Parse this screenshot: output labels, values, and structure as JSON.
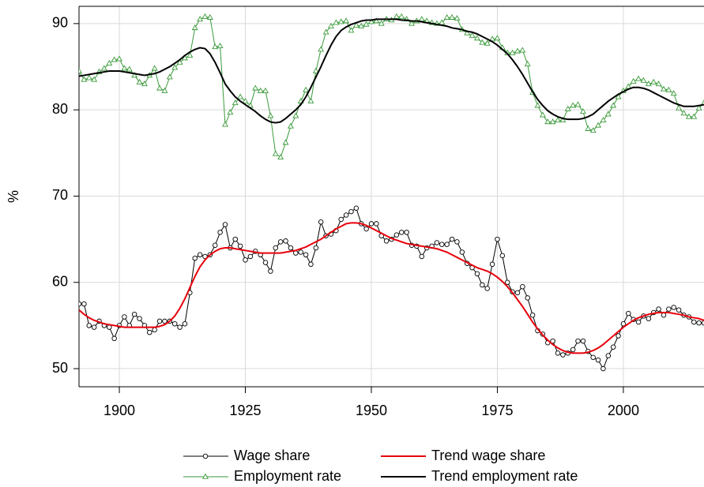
{
  "chart_data": {
    "type": "line",
    "y_label": "%",
    "x": [
      1892,
      1893,
      1894,
      1895,
      1896,
      1897,
      1898,
      1899,
      1900,
      1901,
      1902,
      1903,
      1904,
      1905,
      1906,
      1907,
      1908,
      1909,
      1910,
      1911,
      1912,
      1913,
      1914,
      1915,
      1916,
      1917,
      1918,
      1919,
      1920,
      1921,
      1922,
      1923,
      1924,
      1925,
      1926,
      1927,
      1928,
      1929,
      1930,
      1931,
      1932,
      1933,
      1934,
      1935,
      1936,
      1937,
      1938,
      1939,
      1940,
      1941,
      1942,
      1943,
      1944,
      1945,
      1946,
      1947,
      1948,
      1949,
      1950,
      1951,
      1952,
      1953,
      1954,
      1955,
      1956,
      1957,
      1958,
      1959,
      1960,
      1961,
      1962,
      1963,
      1964,
      1965,
      1966,
      1967,
      1968,
      1969,
      1970,
      1971,
      1972,
      1973,
      1974,
      1975,
      1976,
      1977,
      1978,
      1979,
      1980,
      1981,
      1982,
      1983,
      1984,
      1985,
      1986,
      1987,
      1988,
      1989,
      1990,
      1991,
      1992,
      1993,
      1994,
      1995,
      1996,
      1997,
      1998,
      1999,
      2000,
      2001,
      2002,
      2003,
      2004,
      2005,
      2006,
      2007,
      2008,
      2009,
      2010,
      2011,
      2012,
      2013,
      2014,
      2015,
      2016
    ],
    "xlim": [
      1892,
      2016
    ],
    "xticks": [
      1900,
      1925,
      1950,
      1975,
      2000
    ],
    "ylim": [
      47.9,
      92
    ],
    "yticks": [
      50,
      60,
      70,
      80,
      90
    ],
    "grid": true,
    "series": [
      {
        "name": "Wage share",
        "color": "#000000",
        "marker": "circle",
        "values": [
          57.5,
          57.5,
          55,
          54.8,
          55.5,
          55,
          54.8,
          53.5,
          55,
          56,
          55,
          56.3,
          55.8,
          55,
          54.2,
          54.5,
          55.5,
          55.5,
          55.5,
          55.2,
          54.8,
          55.2,
          58.8,
          62.8,
          63.2,
          63,
          63.2,
          64.3,
          65.8,
          66.7,
          64,
          65,
          64.2,
          62.6,
          63,
          63.6,
          63.2,
          62.3,
          61.3,
          64,
          64.7,
          64.8,
          64,
          63.4,
          63.5,
          63.2,
          62.1,
          64,
          67,
          65.4,
          65.6,
          66,
          67.3,
          67.8,
          68.2,
          68.6,
          66.8,
          66.2,
          66.8,
          66.8,
          65.4,
          64.8,
          65,
          65.5,
          65.8,
          65.8,
          64.3,
          64.2,
          63,
          64,
          64.2,
          64.6,
          64.4,
          64.4,
          65,
          64.7,
          63.5,
          62.2,
          61.7,
          61,
          59.7,
          59.3,
          62.1,
          65,
          63.1,
          60,
          58.9,
          58.8,
          59.5,
          58.2,
          56.2,
          54.4,
          54,
          53,
          53.2,
          51.8,
          51.6,
          51.8,
          52.2,
          53.2,
          53.2,
          52,
          51.3,
          51,
          50,
          51.5,
          52.5,
          53.8,
          55.2,
          56.4,
          55.7,
          55.4,
          56.1,
          55.8,
          56.5,
          56.9,
          56.2,
          56.9,
          57.1,
          56.8,
          56.2,
          56,
          55.4,
          55.3,
          55.3
        ]
      },
      {
        "name": "Trend wage share",
        "color": "#e8000b",
        "marker": null,
        "values": [
          56.8,
          56.3,
          55.9,
          55.6,
          55.4,
          55.2,
          55.1,
          55.0,
          54.9,
          54.8,
          54.8,
          54.8,
          54.8,
          54.8,
          54.8,
          54.8,
          54.9,
          55.1,
          55.5,
          56.1,
          57.0,
          58.1,
          59.4,
          60.7,
          61.8,
          62.6,
          63.2,
          63.6,
          63.9,
          64.0,
          64.0,
          63.9,
          63.8,
          63.7,
          63.6,
          63.5,
          63.4,
          63.4,
          63.4,
          63.4,
          63.4,
          63.5,
          63.6,
          63.7,
          63.9,
          64.1,
          64.4,
          64.7,
          65.0,
          65.4,
          65.8,
          66.2,
          66.5,
          66.8,
          66.9,
          66.9,
          66.8,
          66.6,
          66.3,
          66.0,
          65.7,
          65.4,
          65.1,
          64.9,
          64.7,
          64.5,
          64.4,
          64.3,
          64.2,
          64.1,
          64.0,
          63.9,
          63.7,
          63.5,
          63.2,
          62.9,
          62.6,
          62.3,
          62.0,
          61.7,
          61.5,
          61.3,
          61.0,
          60.6,
          60.1,
          59.5,
          58.8,
          58.0,
          57.2,
          56.3,
          55.4,
          54.6,
          53.9,
          53.3,
          52.8,
          52.4,
          52.1,
          51.9,
          51.8,
          51.8,
          51.8,
          51.9,
          52.1,
          52.4,
          52.8,
          53.3,
          53.8,
          54.3,
          54.8,
          55.2,
          55.6,
          55.9,
          56.1,
          56.3,
          56.4,
          56.5,
          56.5,
          56.5,
          56.4,
          56.3,
          56.2,
          56.0,
          55.9,
          55.8,
          55.6
        ]
      },
      {
        "name": "Employment rate",
        "color": "#3a9a3a",
        "marker": "triangle",
        "values": [
          84.5,
          83.5,
          83.7,
          83.5,
          84.4,
          84.8,
          85.4,
          85.8,
          85.9,
          84.8,
          84.7,
          84,
          83.2,
          83,
          84,
          84.8,
          82.5,
          82.2,
          83.8,
          84.9,
          85.5,
          86,
          86.3,
          89.5,
          90.5,
          90.8,
          90.7,
          87.3,
          87.4,
          78.3,
          79.7,
          80.8,
          81.5,
          81,
          80.5,
          82.5,
          82.2,
          82.2,
          79.3,
          74.9,
          74.5,
          76.2,
          78.1,
          79.3,
          81,
          82.3,
          81,
          84.5,
          87,
          89,
          89.7,
          90.1,
          90.2,
          90.3,
          89.2,
          89.8,
          89.7,
          89.9,
          90.2,
          90.3,
          90,
          90.5,
          90.4,
          90.8,
          90.8,
          90.5,
          90,
          90.3,
          90.5,
          90.3,
          90.1,
          90,
          90.1,
          90.7,
          90.7,
          90.6,
          89.3,
          88.9,
          88.6,
          88.3,
          87.8,
          87.7,
          88.2,
          88.3,
          87.2,
          86.6,
          86.6,
          86.8,
          86.9,
          85.3,
          82,
          80.5,
          79.4,
          78.6,
          78.6,
          78.8,
          78.8,
          80.1,
          80.5,
          80.6,
          79.8,
          77.8,
          77.6,
          78.2,
          78.8,
          79.5,
          80.5,
          81.5,
          82.2,
          82.7,
          83.3,
          83.6,
          83.4,
          83,
          83.2,
          83,
          82.4,
          82.3,
          81.9,
          80.2,
          79.6,
          79.2,
          79.2,
          80.2,
          80.8
        ]
      },
      {
        "name": "Trend employment rate",
        "color": "#000000",
        "marker": null,
        "values": [
          83.9,
          84.0,
          84.1,
          84.2,
          84.3,
          84.4,
          84.5,
          84.5,
          84.5,
          84.4,
          84.3,
          84.2,
          84.1,
          84.0,
          84.1,
          84.2,
          84.4,
          84.7,
          85.0,
          85.4,
          85.8,
          86.3,
          86.7,
          87.0,
          87.2,
          87.1,
          86.5,
          85.5,
          84.3,
          83.0,
          82.2,
          81.5,
          81.0,
          80.6,
          80.2,
          79.8,
          79.3,
          78.9,
          78.6,
          78.5,
          78.6,
          79.0,
          79.5,
          80.0,
          80.6,
          81.5,
          82.6,
          83.8,
          85.0,
          86.3,
          87.5,
          88.5,
          89.2,
          89.6,
          89.9,
          90.1,
          90.3,
          90.4,
          90.4,
          90.5,
          90.5,
          90.5,
          90.5,
          90.5,
          90.4,
          90.4,
          90.3,
          90.3,
          90.2,
          90.1,
          90.0,
          89.9,
          89.8,
          89.7,
          89.5,
          89.4,
          89.3,
          89.1,
          89.0,
          88.8,
          88.5,
          88.2,
          87.9,
          87.5,
          87.0,
          86.5,
          85.8,
          85.0,
          84.1,
          83.1,
          82.1,
          81.2,
          80.5,
          79.9,
          79.5,
          79.2,
          79.0,
          78.9,
          78.9,
          78.9,
          79.0,
          79.2,
          79.5,
          80.0,
          80.5,
          81.0,
          81.4,
          81.8,
          82.1,
          82.4,
          82.6,
          82.6,
          82.5,
          82.3,
          82.0,
          81.7,
          81.4,
          81.1,
          80.8,
          80.6,
          80.4,
          80.4,
          80.4,
          80.5,
          80.6
        ]
      }
    ]
  }
}
